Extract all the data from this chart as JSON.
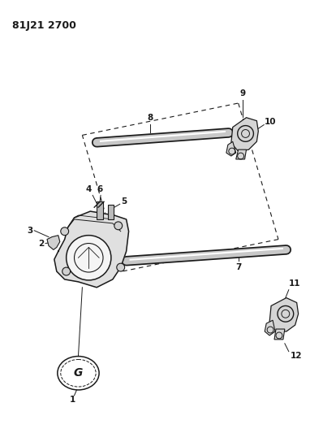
{
  "title": "81J21 2700",
  "bg_color": "#ffffff",
  "line_color": "#1a1a1a",
  "fig_width": 3.98,
  "fig_height": 5.33,
  "dpi": 100
}
